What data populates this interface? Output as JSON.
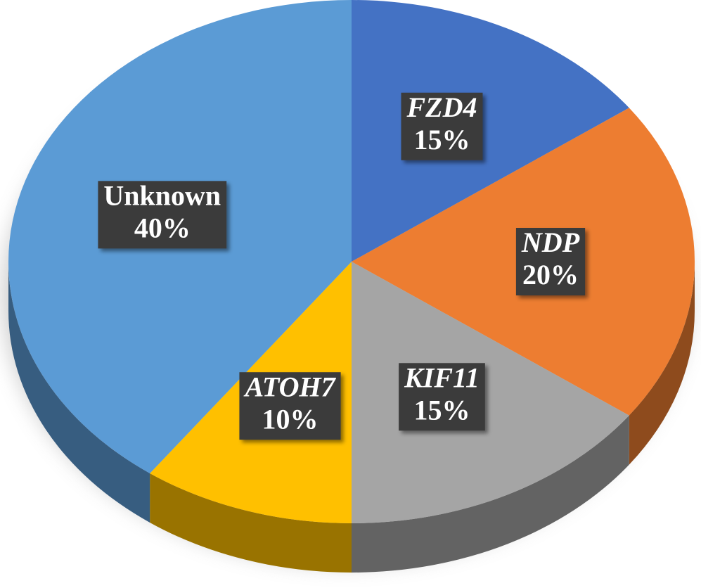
{
  "chart_data": {
    "type": "pie",
    "categories": [
      "FZD4",
      "NDP",
      "KIF11",
      "ATOH7",
      "Unknown"
    ],
    "values": [
      15,
      20,
      15,
      10,
      40
    ],
    "value_labels": [
      "15%",
      "20%",
      "15%",
      "10%",
      "40%"
    ],
    "colors": [
      "#4472c4",
      "#ed7d31",
      "#a5a5a5",
      "#ffc000",
      "#5b9bd5"
    ]
  }
}
